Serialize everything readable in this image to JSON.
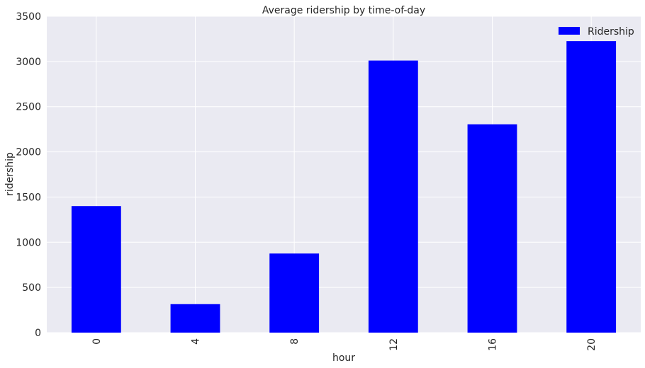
{
  "chart_data": {
    "type": "bar",
    "title": "Average ridership by time-of-day",
    "xlabel": "hour",
    "ylabel": "ridership",
    "categories": [
      "0",
      "4",
      "8",
      "12",
      "16",
      "20"
    ],
    "series": [
      {
        "name": "Ridership",
        "values": [
          1400,
          315,
          875,
          3010,
          2305,
          3225
        ]
      }
    ],
    "ylim": [
      0,
      3500
    ],
    "yticks": [
      "0",
      "500",
      "1000",
      "1500",
      "2000",
      "2500",
      "3000",
      "3500"
    ],
    "grid": true,
    "legend_position": "top-right",
    "colors": {
      "bar": "#0000ff",
      "plot_background": "#eaeaf2",
      "grid": "#ffffff",
      "text": "#262626"
    }
  }
}
